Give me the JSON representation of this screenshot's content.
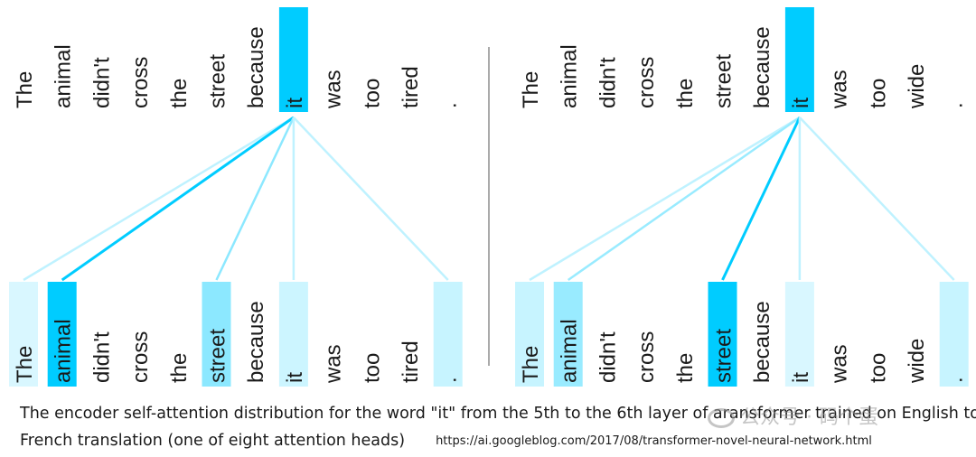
{
  "panels": [
    {
      "name": "left",
      "query_word": "it",
      "top_tokens": [
        "The",
        "animal",
        "didn't",
        "cross",
        "the",
        "street",
        "because",
        "it",
        "was",
        "too",
        "tired",
        "."
      ],
      "bottom_tokens": [
        "The",
        "animal",
        "didn't",
        "cross",
        "the",
        "street",
        "because",
        "it",
        "was",
        "too",
        "tired",
        "."
      ],
      "query_index": 7,
      "attention": [
        0.15,
        1.0,
        0,
        0,
        0,
        0.45,
        0,
        0.2,
        0,
        0,
        0,
        0.22
      ]
    },
    {
      "name": "right",
      "query_word": "it",
      "top_tokens": [
        "The",
        "animal",
        "didn't",
        "cross",
        "the",
        "street",
        "because",
        "it",
        "was",
        "too",
        "wide",
        "."
      ],
      "bottom_tokens": [
        "The",
        "animal",
        "didn't",
        "cross",
        "the",
        "street",
        "because",
        "it",
        "was",
        "too",
        "wide",
        "."
      ],
      "query_index": 7,
      "attention": [
        0.22,
        0.4,
        0,
        0,
        0,
        1.0,
        0,
        0.15,
        0,
        0,
        0,
        0.22
      ]
    }
  ],
  "colors": {
    "query_highlight": "#00ccff",
    "attention_full": "#00ccff",
    "divider": "#555555"
  },
  "caption": {
    "line1": "The encoder self-attention distribution for the word \"it\" from the 5th to the 6th layer of aransformer trained on English to",
    "line2": "French translation (one of eight attention heads)",
    "url": "https://ai.googleblog.com/2017/08/transformer-novel-neural-network.html"
  },
  "watermark": "公众号 · 码个蛋"
}
